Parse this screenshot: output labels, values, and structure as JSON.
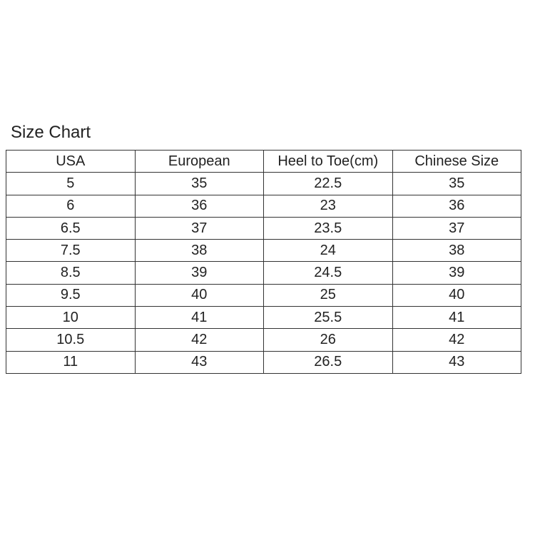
{
  "title": "Size Chart",
  "table": {
    "headers": [
      "USA",
      "European",
      "Heel to Toe(cm)",
      "Chinese Size"
    ],
    "rows": [
      [
        "5",
        "35",
        "22.5",
        "35"
      ],
      [
        "6",
        "36",
        "23",
        "36"
      ],
      [
        "6.5",
        "37",
        "23.5",
        "37"
      ],
      [
        "7.5",
        "38",
        "24",
        "38"
      ],
      [
        "8.5",
        "39",
        "24.5",
        "39"
      ],
      [
        "9.5",
        "40",
        "25",
        "40"
      ],
      [
        "10",
        "41",
        "25.5",
        "41"
      ],
      [
        "10.5",
        "42",
        "26",
        "42"
      ],
      [
        "11",
        "43",
        "26.5",
        "43"
      ]
    ]
  }
}
